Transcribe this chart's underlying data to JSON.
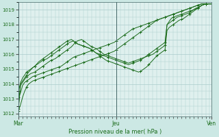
{
  "background_color": "#cce8e4",
  "grid_color": "#aacccc",
  "plot_bg_color": "#dff0ee",
  "line_color": "#1a6b1a",
  "marker_color": "#1a6b1a",
  "xlabel": "Pression niveau de la mer( hPa )",
  "ylim": [
    1011.8,
    1019.5
  ],
  "yticks": [
    1012,
    1013,
    1014,
    1015,
    1016,
    1017,
    1018,
    1019
  ],
  "xtick_labels": [
    "Mar",
    "Jeu",
    "Ven"
  ],
  "xtick_positions": [
    0,
    48,
    95
  ],
  "total_points": 96,
  "series": [
    [
      1012.2,
      1012.6,
      1013.1,
      1013.5,
      1013.8,
      1014.0,
      1014.1,
      1014.2,
      1014.25,
      1014.3,
      1014.35,
      1014.4,
      1014.45,
      1014.5,
      1014.55,
      1014.6,
      1014.65,
      1014.7,
      1014.75,
      1014.8,
      1014.85,
      1014.9,
      1014.95,
      1015.0,
      1015.05,
      1015.1,
      1015.15,
      1015.2,
      1015.25,
      1015.3,
      1015.35,
      1015.4,
      1015.45,
      1015.5,
      1015.55,
      1015.6,
      1015.65,
      1015.7,
      1015.75,
      1015.8,
      1015.85,
      1015.9,
      1015.95,
      1016.0,
      1016.05,
      1016.1,
      1016.15,
      1016.2,
      1016.3,
      1016.4,
      1016.5,
      1016.6,
      1016.7,
      1016.8,
      1016.9,
      1017.0,
      1017.1,
      1017.2,
      1017.3,
      1017.4,
      1017.5,
      1017.6,
      1017.7,
      1017.8,
      1017.9,
      1018.0,
      1018.1,
      1018.2,
      1018.3,
      1018.35,
      1018.4,
      1018.45,
      1018.5,
      1018.55,
      1018.6,
      1018.65,
      1018.7,
      1018.75,
      1018.8,
      1018.85,
      1018.9,
      1018.95,
      1019.0,
      1019.05,
      1019.1,
      1019.15,
      1019.2,
      1019.25,
      1019.3,
      1019.35,
      1019.4,
      1019.4,
      1019.4,
      1019.4,
      1019.4,
      1019.4
    ],
    [
      1013.1,
      1013.4,
      1013.9,
      1014.1,
      1014.2,
      1014.3,
      1014.4,
      1014.5,
      1014.55,
      1014.6,
      1014.65,
      1014.7,
      1014.75,
      1014.8,
      1014.85,
      1014.9,
      1014.95,
      1015.0,
      1015.05,
      1015.1,
      1015.15,
      1015.2,
      1015.3,
      1015.4,
      1015.5,
      1015.6,
      1015.7,
      1015.8,
      1015.85,
      1015.9,
      1015.95,
      1016.0,
      1016.05,
      1016.1,
      1016.15,
      1016.2,
      1016.25,
      1016.3,
      1016.35,
      1016.4,
      1016.45,
      1016.5,
      1016.55,
      1016.6,
      1016.65,
      1016.7,
      1016.75,
      1016.8,
      1016.9,
      1017.0,
      1017.1,
      1017.2,
      1017.3,
      1017.4,
      1017.5,
      1017.6,
      1017.7,
      1017.75,
      1017.8,
      1017.85,
      1017.9,
      1017.95,
      1018.0,
      1018.05,
      1018.1,
      1018.15,
      1018.2,
      1018.25,
      1018.3,
      1018.35,
      1018.4,
      1018.45,
      1018.5,
      1018.55,
      1018.6,
      1018.65,
      1018.7,
      1018.75,
      1018.8,
      1018.85,
      1018.9,
      1018.95,
      1019.0,
      1019.05,
      1019.1,
      1019.15,
      1019.2,
      1019.25,
      1019.3,
      1019.35,
      1019.4,
      1019.4,
      1019.4,
      1019.4,
      1019.4,
      1019.4
    ],
    [
      1012.3,
      1013.9,
      1014.1,
      1014.3,
      1014.5,
      1014.6,
      1014.7,
      1014.75,
      1014.8,
      1014.9,
      1015.0,
      1015.1,
      1015.2,
      1015.3,
      1015.4,
      1015.5,
      1015.6,
      1015.65,
      1015.7,
      1015.8,
      1015.9,
      1016.0,
      1016.1,
      1016.2,
      1016.3,
      1016.4,
      1016.5,
      1016.65,
      1016.8,
      1016.9,
      1016.95,
      1017.0,
      1016.9,
      1016.8,
      1016.7,
      1016.6,
      1016.5,
      1016.45,
      1016.4,
      1016.3,
      1016.2,
      1016.1,
      1016.0,
      1015.95,
      1015.9,
      1015.85,
      1015.8,
      1015.75,
      1015.7,
      1015.65,
      1015.6,
      1015.55,
      1015.5,
      1015.45,
      1015.4,
      1015.45,
      1015.5,
      1015.55,
      1015.6,
      1015.65,
      1015.7,
      1015.75,
      1015.8,
      1015.85,
      1015.9,
      1015.95,
      1016.0,
      1016.1,
      1016.2,
      1016.3,
      1016.4,
      1016.5,
      1016.6,
      1018.0,
      1018.2,
      1018.4,
      1018.5,
      1018.55,
      1018.6,
      1018.65,
      1018.7,
      1018.75,
      1018.8,
      1018.85,
      1018.9,
      1018.95,
      1019.0,
      1019.05,
      1019.1,
      1019.2,
      1019.3,
      1019.35,
      1019.4,
      1019.4,
      1019.4,
      1019.4
    ],
    [
      1013.5,
      1014.1,
      1014.4,
      1014.6,
      1014.8,
      1014.9,
      1015.0,
      1015.1,
      1015.2,
      1015.3,
      1015.4,
      1015.5,
      1015.6,
      1015.65,
      1015.7,
      1015.8,
      1015.9,
      1016.0,
      1016.1,
      1016.2,
      1016.3,
      1016.4,
      1016.5,
      1016.6,
      1016.7,
      1016.8,
      1016.85,
      1016.9,
      1016.8,
      1016.7,
      1016.65,
      1016.6,
      1016.55,
      1016.5,
      1016.45,
      1016.4,
      1016.3,
      1016.2,
      1016.1,
      1016.05,
      1016.0,
      1015.95,
      1015.9,
      1015.85,
      1015.8,
      1015.75,
      1015.7,
      1015.65,
      1015.6,
      1015.55,
      1015.5,
      1015.45,
      1015.4,
      1015.35,
      1015.3,
      1015.35,
      1015.4,
      1015.45,
      1015.5,
      1015.55,
      1015.6,
      1015.7,
      1015.8,
      1015.9,
      1016.0,
      1016.1,
      1016.2,
      1016.3,
      1016.4,
      1016.5,
      1016.6,
      1016.7,
      1016.8,
      1018.0,
      1018.1,
      1018.2,
      1018.3,
      1018.4,
      1018.5,
      1018.55,
      1018.6,
      1018.65,
      1018.7,
      1018.75,
      1018.8,
      1018.9,
      1019.0,
      1019.1,
      1019.15,
      1019.2,
      1019.3,
      1019.35,
      1019.4,
      1019.4,
      1019.4,
      1019.4
    ],
    [
      1012.5,
      1014.0,
      1014.2,
      1014.4,
      1014.6,
      1014.8,
      1014.95,
      1015.1,
      1015.2,
      1015.35,
      1015.5,
      1015.6,
      1015.7,
      1015.8,
      1015.9,
      1016.0,
      1016.1,
      1016.2,
      1016.3,
      1016.4,
      1016.5,
      1016.6,
      1016.7,
      1016.8,
      1016.9,
      1016.95,
      1017.0,
      1016.9,
      1016.8,
      1016.7,
      1016.65,
      1016.6,
      1016.55,
      1016.5,
      1016.45,
      1016.4,
      1016.3,
      1016.2,
      1016.1,
      1016.0,
      1015.9,
      1015.8,
      1015.7,
      1015.6,
      1015.55,
      1015.5,
      1015.45,
      1015.4,
      1015.35,
      1015.3,
      1015.25,
      1015.2,
      1015.15,
      1015.1,
      1015.05,
      1015.0,
      1014.95,
      1014.9,
      1014.85,
      1014.8,
      1014.85,
      1014.95,
      1015.05,
      1015.15,
      1015.3,
      1015.45,
      1015.6,
      1015.75,
      1015.9,
      1016.0,
      1016.1,
      1016.2,
      1016.3,
      1017.6,
      1017.8,
      1017.9,
      1018.0,
      1018.1,
      1018.2,
      1018.3,
      1018.35,
      1018.4,
      1018.5,
      1018.6,
      1018.7,
      1018.8,
      1018.9,
      1019.0,
      1019.1,
      1019.2,
      1019.3,
      1019.35,
      1019.4,
      1019.4,
      1019.4,
      1019.4
    ]
  ]
}
